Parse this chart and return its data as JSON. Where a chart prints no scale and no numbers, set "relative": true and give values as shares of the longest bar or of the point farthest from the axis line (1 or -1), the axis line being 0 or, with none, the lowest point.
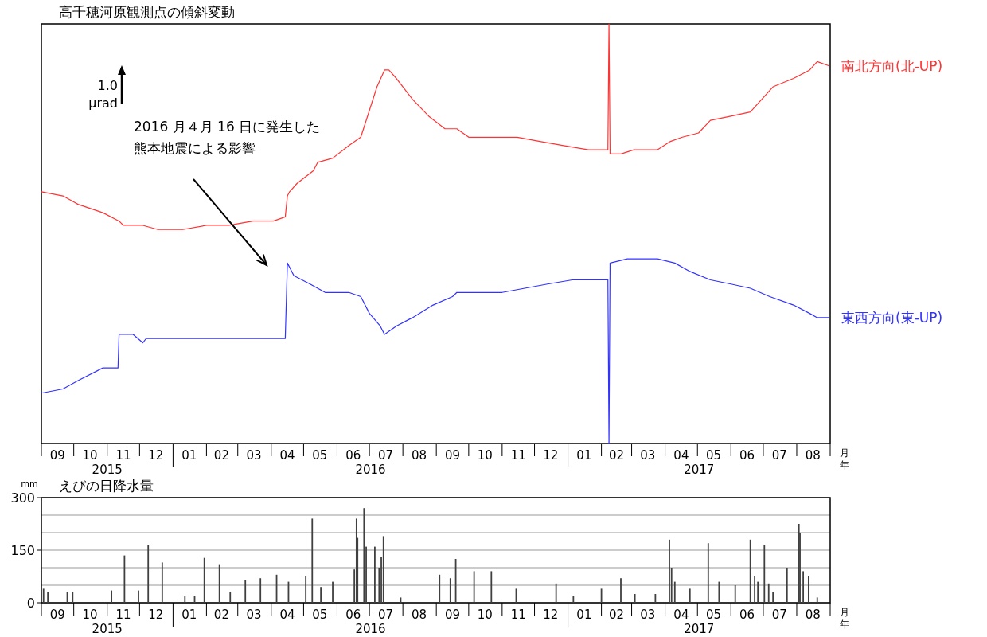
{
  "chart_data": [
    {
      "type": "line",
      "title": "高千穂河原観測点の傾斜変動",
      "relative": true,
      "xlabel": "月年",
      "xlim": [
        "2015-09-01",
        "2017-09-01"
      ],
      "xticks": [
        {
          "value": "2015-09-16",
          "label": "09"
        },
        {
          "value": "2015-10-16",
          "label": "10"
        },
        {
          "value": "2015-11-16",
          "label": "11"
        },
        {
          "value": "2015-12-16",
          "label": "12"
        },
        {
          "value": "2016-01-16",
          "label": "01"
        },
        {
          "value": "2016-02-15",
          "label": "02"
        },
        {
          "value": "2016-03-16",
          "label": "03"
        },
        {
          "value": "2016-04-16",
          "label": "04"
        },
        {
          "value": "2016-05-16",
          "label": "05"
        },
        {
          "value": "2016-06-16",
          "label": "06"
        },
        {
          "value": "2016-07-16",
          "label": "07"
        },
        {
          "value": "2016-08-16",
          "label": "08"
        },
        {
          "value": "2016-09-16",
          "label": "09"
        },
        {
          "value": "2016-10-16",
          "label": "10"
        },
        {
          "value": "2016-11-16",
          "label": "11"
        },
        {
          "value": "2016-12-16",
          "label": "12"
        },
        {
          "value": "2017-01-16",
          "label": "01"
        },
        {
          "value": "2017-02-15",
          "label": "02"
        },
        {
          "value": "2017-03-16",
          "label": "03"
        },
        {
          "value": "2017-04-16",
          "label": "04"
        },
        {
          "value": "2017-05-16",
          "label": "05"
        },
        {
          "value": "2017-06-16",
          "label": "06"
        },
        {
          "value": "2017-07-16",
          "label": "07"
        },
        {
          "value": "2017-08-16",
          "label": "08"
        }
      ],
      "annotations": [
        "2015",
        "2016",
        "2017",
        "1.0 μrad",
        "2016 月４月 16 日に発生した熊本地震による影響"
      ],
      "series": [
        {
          "name": "南北方向(北-UP)",
          "color": "#ff3333",
          "x": [
            "2015-09-01",
            "2015-09-21",
            "2015-10-05",
            "2015-10-28",
            "2015-11-12",
            "2015-11-16",
            "2015-11-20",
            "2015-12-04",
            "2015-12-18",
            "2016-01-10",
            "2016-02-01",
            "2016-02-22",
            "2016-03-15",
            "2016-04-03",
            "2016-04-14",
            "2016-04-16",
            "2016-04-18",
            "2016-04-25",
            "2016-05-10",
            "2016-05-14",
            "2016-05-28",
            "2016-06-12",
            "2016-06-23",
            "2016-06-28",
            "2016-07-08",
            "2016-07-15",
            "2016-07-19",
            "2016-07-26",
            "2016-08-10",
            "2016-08-25",
            "2016-09-09",
            "2016-09-20",
            "2016-10-01",
            "2016-10-23",
            "2016-11-15",
            "2016-12-06",
            "2016-12-28",
            "2017-01-20",
            "2017-02-07",
            "2017-02-08",
            "2017-02-09",
            "2017-02-19",
            "2017-03-03",
            "2017-03-25",
            "2017-04-06",
            "2017-04-17",
            "2017-05-02",
            "2017-05-13",
            "2017-06-01",
            "2017-06-19",
            "2017-06-26",
            "2017-07-03",
            "2017-07-10",
            "2017-07-29",
            "2017-08-13",
            "2017-08-20",
            "2017-08-31"
          ],
          "values": [
            0.6,
            0.59,
            0.57,
            0.55,
            0.53,
            0.52,
            0.52,
            0.52,
            0.51,
            0.51,
            0.52,
            0.52,
            0.53,
            0.53,
            0.54,
            0.59,
            0.6,
            0.62,
            0.65,
            0.67,
            0.68,
            0.71,
            0.73,
            0.77,
            0.85,
            0.89,
            0.89,
            0.87,
            0.82,
            0.78,
            0.75,
            0.75,
            0.73,
            0.73,
            0.73,
            0.72,
            0.71,
            0.7,
            0.7,
            1,
            0.69,
            0.69,
            0.7,
            0.7,
            0.72,
            0.73,
            0.74,
            0.77,
            0.78,
            0.79,
            0.81,
            0.83,
            0.85,
            0.87,
            0.89,
            0.91,
            0.9
          ]
        },
        {
          "name": "東西方向(東-UP)",
          "color": "#3333ff",
          "x": [
            "2015-09-01",
            "2015-09-21",
            "2015-10-05",
            "2015-10-28",
            "2015-11-11",
            "2015-11-12",
            "2015-11-25",
            "2015-12-04",
            "2015-12-07",
            "2016-01-03",
            "2016-02-01",
            "2016-03-01",
            "2016-03-31",
            "2016-04-14",
            "2016-04-16",
            "2016-04-22",
            "2016-05-07",
            "2016-05-21",
            "2016-06-12",
            "2016-06-23",
            "2016-07-01",
            "2016-07-11",
            "2016-07-15",
            "2016-07-26",
            "2016-08-10",
            "2016-08-29",
            "2016-09-16",
            "2016-09-20",
            "2016-10-09",
            "2016-11-01",
            "2016-11-22",
            "2016-12-13",
            "2017-01-05",
            "2017-02-04",
            "2017-02-07",
            "2017-02-08",
            "2017-02-09",
            "2017-02-25",
            "2017-03-10",
            "2017-03-25",
            "2017-04-10",
            "2017-04-24",
            "2017-05-13",
            "2017-06-01",
            "2017-06-19",
            "2017-07-07",
            "2017-07-29",
            "2017-08-13",
            "2017-08-20",
            "2017-08-31"
          ],
          "values": [
            0.12,
            0.13,
            0.15,
            0.18,
            0.18,
            0.26,
            0.26,
            0.24,
            0.25,
            0.25,
            0.25,
            0.25,
            0.25,
            0.25,
            0.43,
            0.4,
            0.38,
            0.36,
            0.36,
            0.35,
            0.31,
            0.28,
            0.26,
            0.28,
            0.3,
            0.33,
            0.35,
            0.36,
            0.36,
            0.36,
            0.37,
            0.38,
            0.39,
            0.39,
            0.39,
            0,
            0.43,
            0.44,
            0.44,
            0.44,
            0.43,
            0.41,
            0.39,
            0.38,
            0.37,
            0.35,
            0.33,
            0.31,
            0.3,
            0.3
          ]
        }
      ]
    },
    {
      "type": "bar",
      "title": "えびの日降水量",
      "ylabel": "mm",
      "color": "#404040",
      "grid": "y",
      "ylim": [
        0,
        300
      ],
      "yticks": [
        0,
        {
          "value": 50,
          "label": null
        },
        {
          "value": 100,
          "label": null
        },
        150,
        {
          "value": 200,
          "label": null
        },
        {
          "value": 250,
          "label": null
        },
        300
      ],
      "xlabel": "月年",
      "xlim": [
        "2015-09-01",
        "2017-09-01"
      ],
      "xticks": [
        {
          "value": "2015-09-16",
          "label": "09"
        },
        {
          "value": "2015-10-16",
          "label": "10"
        },
        {
          "value": "2015-11-16",
          "label": "11"
        },
        {
          "value": "2015-12-16",
          "label": "12"
        },
        {
          "value": "2016-01-16",
          "label": "01"
        },
        {
          "value": "2016-02-15",
          "label": "02"
        },
        {
          "value": "2016-03-16",
          "label": "03"
        },
        {
          "value": "2016-04-16",
          "label": "04"
        },
        {
          "value": "2016-05-16",
          "label": "05"
        },
        {
          "value": "2016-06-16",
          "label": "06"
        },
        {
          "value": "2016-07-16",
          "label": "07"
        },
        {
          "value": "2016-08-16",
          "label": "08"
        },
        {
          "value": "2016-09-16",
          "label": "09"
        },
        {
          "value": "2016-10-16",
          "label": "10"
        },
        {
          "value": "2016-11-16",
          "label": "11"
        },
        {
          "value": "2016-12-16",
          "label": "12"
        },
        {
          "value": "2017-01-16",
          "label": "01"
        },
        {
          "value": "2017-02-15",
          "label": "02"
        },
        {
          "value": "2017-03-16",
          "label": "03"
        },
        {
          "value": "2017-04-16",
          "label": "04"
        },
        {
          "value": "2017-05-16",
          "label": "05"
        },
        {
          "value": "2017-06-16",
          "label": "06"
        },
        {
          "value": "2017-07-16",
          "label": "07"
        },
        {
          "value": "2017-08-16",
          "label": "08"
        }
      ],
      "annotations": [
        "2015",
        "2016",
        "2017"
      ],
      "x": [
        "2015-09-03",
        "2015-09-07",
        "2015-09-25",
        "2015-09-30",
        "2015-11-05",
        "2015-11-17",
        "2015-11-30",
        "2015-12-09",
        "2015-12-22",
        "2016-01-12",
        "2016-01-21",
        "2016-01-30",
        "2016-02-13",
        "2016-02-23",
        "2016-03-08",
        "2016-03-22",
        "2016-04-06",
        "2016-04-17",
        "2016-05-03",
        "2016-05-09",
        "2016-05-17",
        "2016-05-28",
        "2016-06-17",
        "2016-06-19",
        "2016-06-20",
        "2016-06-26",
        "2016-06-28",
        "2016-07-06",
        "2016-07-10",
        "2016-07-12",
        "2016-07-14",
        "2016-07-30",
        "2016-09-04",
        "2016-09-14",
        "2016-09-19",
        "2016-10-06",
        "2016-10-22",
        "2016-11-14",
        "2016-12-21",
        "2017-01-06",
        "2017-02-01",
        "2017-02-19",
        "2017-03-04",
        "2017-03-23",
        "2017-04-05",
        "2017-04-07",
        "2017-04-10",
        "2017-04-24",
        "2017-05-11",
        "2017-05-21",
        "2017-06-05",
        "2017-06-19",
        "2017-06-23",
        "2017-06-26",
        "2017-07-02",
        "2017-07-06",
        "2017-07-10",
        "2017-07-23",
        "2017-08-03",
        "2017-08-04",
        "2017-08-07",
        "2017-08-12",
        "2017-08-20"
      ],
      "values": [
        40,
        30,
        30,
        30,
        35,
        135,
        35,
        165,
        115,
        20,
        20,
        128,
        110,
        30,
        65,
        70,
        80,
        60,
        75,
        240,
        45,
        60,
        95,
        240,
        185,
        270,
        160,
        160,
        100,
        130,
        190,
        15,
        80,
        70,
        125,
        90,
        90,
        40,
        55,
        20,
        40,
        70,
        25,
        25,
        180,
        100,
        60,
        40,
        170,
        60,
        50,
        180,
        75,
        60,
        165,
        55,
        30,
        100,
        225,
        200,
        90,
        75,
        15
      ]
    }
  ]
}
